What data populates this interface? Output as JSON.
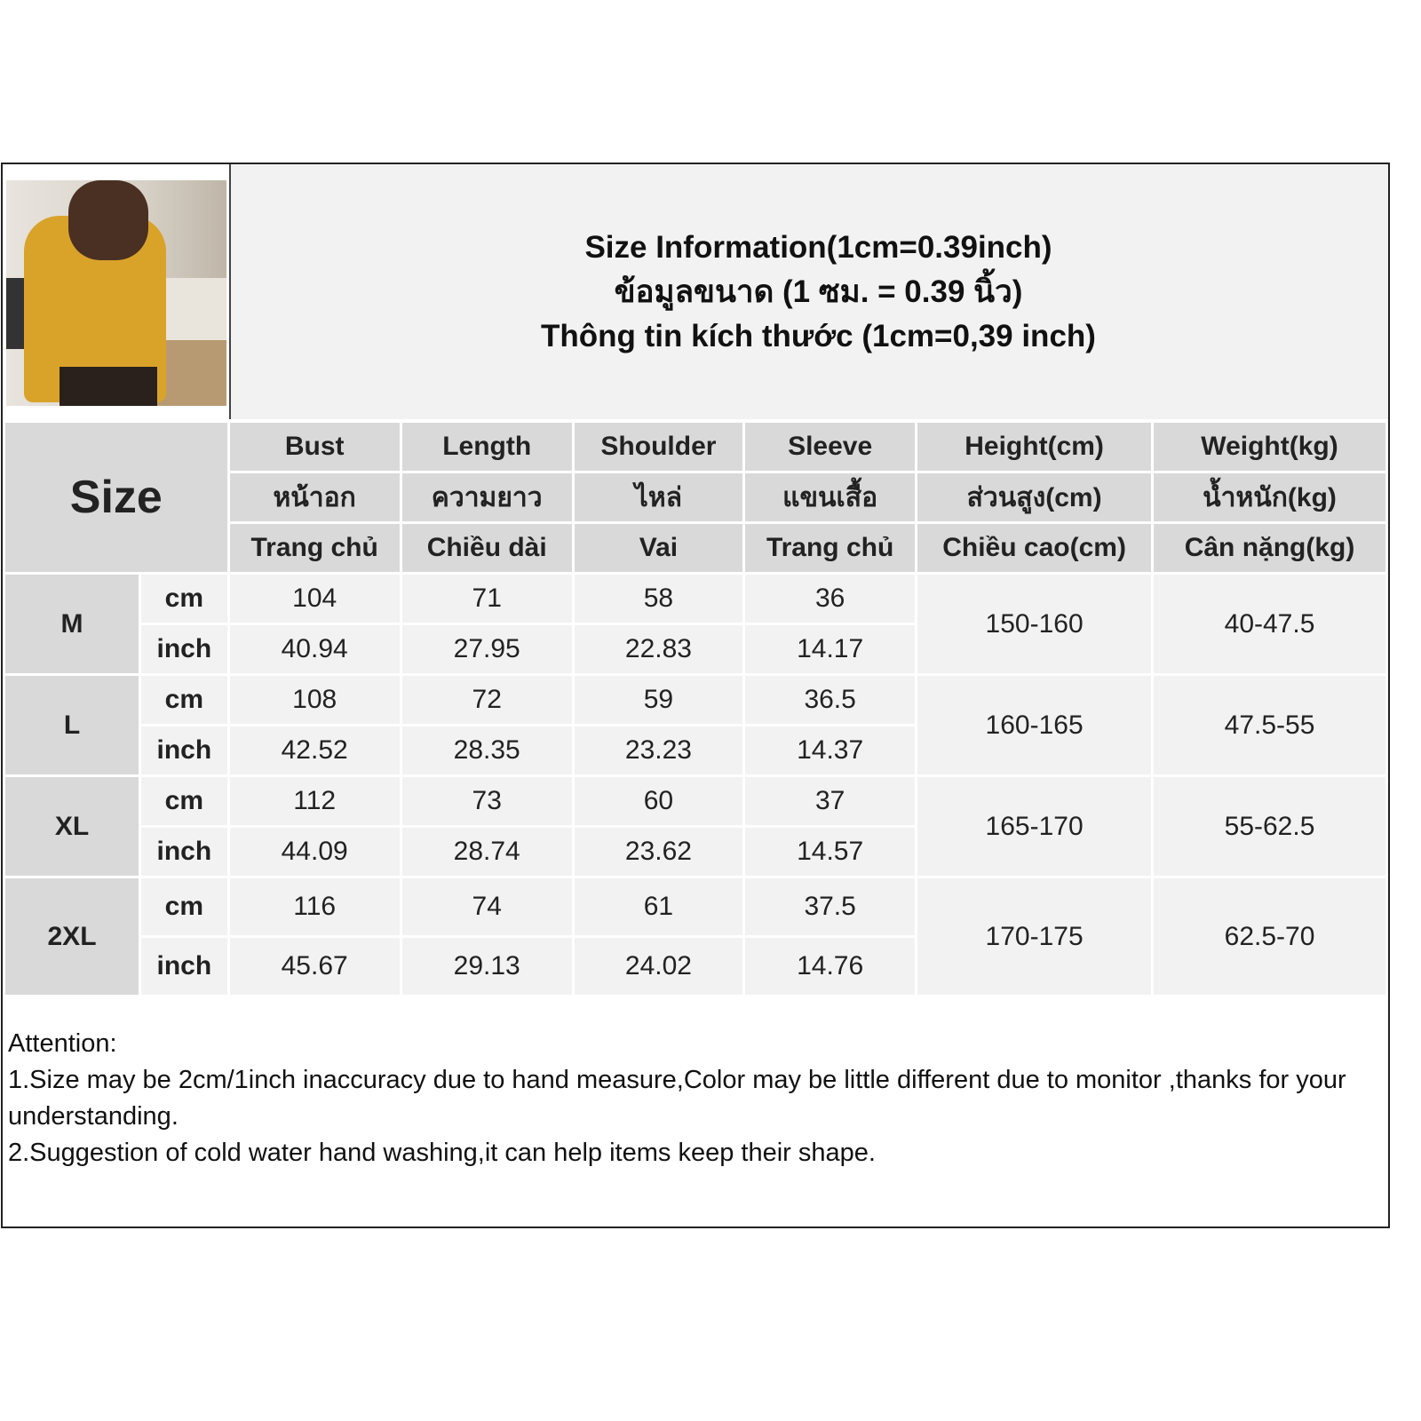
{
  "title": {
    "en": "Size Information(1cm=0.39inch)",
    "th": "ข้อมูลขนาด (1 ซม. = 0.39 นิ้ว)",
    "vi": "Thông tin kích thước (1cm=0,39 inch)"
  },
  "size_label": "Size",
  "headers": [
    {
      "en": "Bust",
      "th": "หน้าอก",
      "vi": "Trang chủ"
    },
    {
      "en": "Length",
      "th": "ความยาว",
      "vi": "Chiều dài"
    },
    {
      "en": "Shoulder",
      "th": "ไหล่",
      "vi": "Vai"
    },
    {
      "en": "Sleeve",
      "th": "แขนเสื้อ",
      "vi": "Trang chủ"
    },
    {
      "en": "Height(cm)",
      "th": "ส่วนสูง(cm)",
      "vi": "Chiều cao(cm)"
    },
    {
      "en": "Weight(kg)",
      "th": "น้ำหนัก(kg)",
      "vi": "Cân nặng(kg)"
    }
  ],
  "units": {
    "cm": "cm",
    "inch": "inch"
  },
  "rows": [
    {
      "size": "M",
      "cm": [
        "104",
        "71",
        "58",
        "36"
      ],
      "inch": [
        "40.94",
        "27.95",
        "22.83",
        "14.17"
      ],
      "height": "150-160",
      "weight": "40-47.5"
    },
    {
      "size": "L",
      "cm": [
        "108",
        "72",
        "59",
        "36.5"
      ],
      "inch": [
        "42.52",
        "28.35",
        "23.23",
        "14.37"
      ],
      "height": "160-165",
      "weight": "47.5-55"
    },
    {
      "size": "XL",
      "cm": [
        "112",
        "73",
        "60",
        "37"
      ],
      "inch": [
        "44.09",
        "28.74",
        "23.62",
        "14.57"
      ],
      "height": "165-170",
      "weight": "55-62.5"
    },
    {
      "size": "2XL",
      "cm": [
        "116",
        "74",
        "61",
        "37.5"
      ],
      "inch": [
        "45.67",
        "29.13",
        "24.02",
        "14.76"
      ],
      "height": "170-175",
      "weight": "62.5-70"
    }
  ],
  "notes": {
    "heading": "Attention:",
    "line1": "1.Size may be 2cm/1inch inaccuracy due to hand measure,Color may be little different due to monitor ,thanks for your understanding.",
    "line2": "2.Suggestion of cold water hand washing,it can help items keep their shape."
  }
}
